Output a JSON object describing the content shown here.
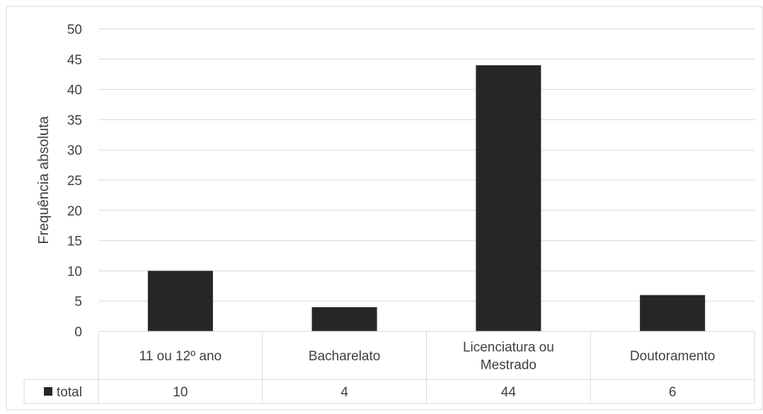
{
  "chart_data": {
    "type": "bar",
    "categories": [
      "11 ou 12º ano",
      "Bacharelato",
      "Licenciatura ou Mestrado",
      "Doutoramento"
    ],
    "category_lines": [
      [
        "11 ou 12º ano"
      ],
      [
        "Bacharelato"
      ],
      [
        "Licenciatura ou",
        "Mestrado"
      ],
      [
        "Doutoramento"
      ]
    ],
    "series": [
      {
        "name": "total",
        "values": [
          10,
          4,
          44,
          6
        ]
      }
    ],
    "ylabel": "Frequência absoluta",
    "ylim": [
      0,
      50
    ],
    "yticks": [
      0,
      5,
      10,
      15,
      20,
      25,
      30,
      35,
      40,
      45,
      50
    ],
    "grid": true,
    "data_table": true,
    "colors": {
      "bar": "#262626",
      "grid": "#d9d9d9",
      "text": "#404040",
      "border": "#d9d9d9"
    }
  }
}
